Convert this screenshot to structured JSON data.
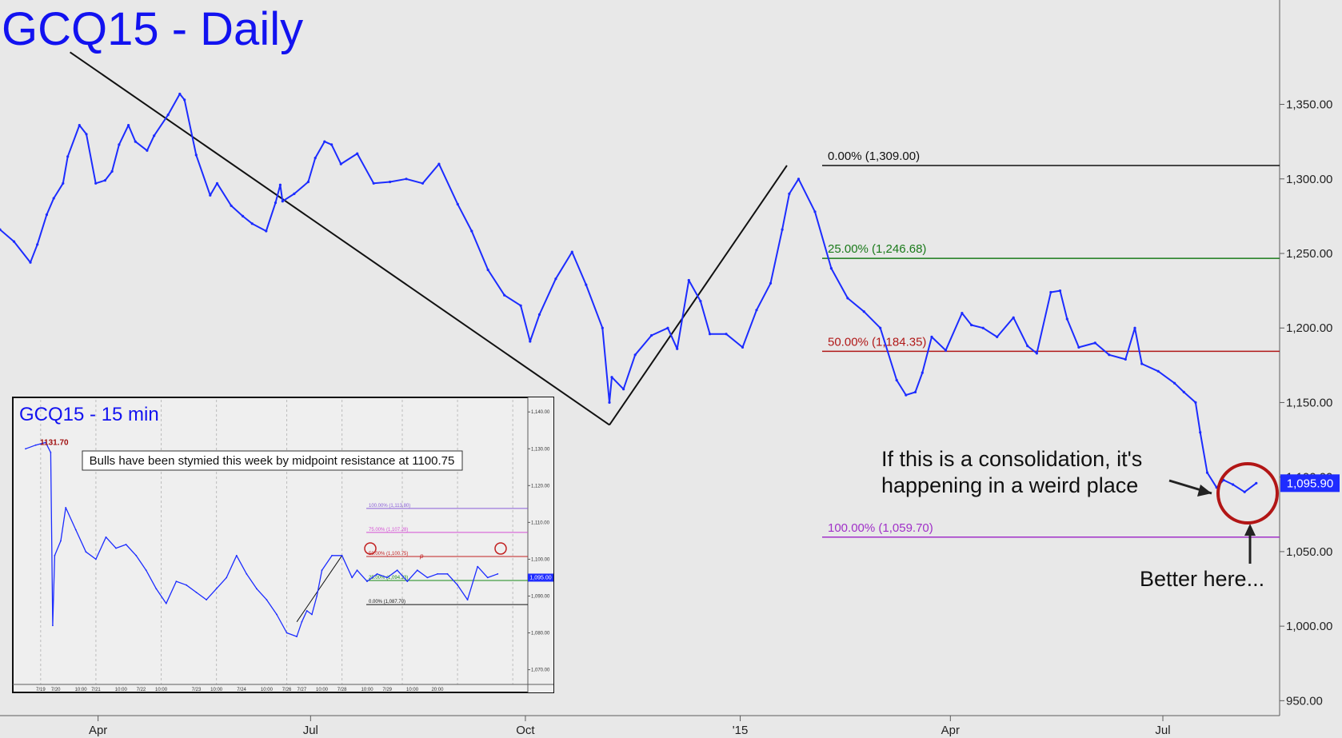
{
  "chart_data": [
    {
      "type": "line",
      "title": "GCQ15 - Daily",
      "x_tick_labels": [
        "Apr",
        "Jul",
        "Oct",
        "'15",
        "Apr",
        "Jul"
      ],
      "y_tick_labels": [
        "950.00",
        "1,000.00",
        "1,050.00",
        "1,100.00",
        "1,150.00",
        "1,200.00",
        "1,250.00",
        "1,300.00",
        "1,350.00"
      ],
      "ylim": [
        940,
        1420
      ],
      "x_range": [
        "2014-02-18",
        "2015-08-20"
      ],
      "grid": false,
      "series": [
        {
          "values": [
            [
              "2014-02-18",
              1266
            ],
            [
              "2014-02-24",
              1258
            ],
            [
              "2014-03-03",
              1244
            ],
            [
              "2014-03-06",
              1256
            ],
            [
              "2014-03-10",
              1276
            ],
            [
              "2014-03-13",
              1287
            ],
            [
              "2014-03-17",
              1297
            ],
            [
              "2014-03-19",
              1315
            ],
            [
              "2014-03-24",
              1336
            ],
            [
              "2014-03-27",
              1330
            ],
            [
              "2014-03-31",
              1297
            ],
            [
              "2014-04-04",
              1299
            ],
            [
              "2014-04-07",
              1305
            ],
            [
              "2014-04-10",
              1323
            ],
            [
              "2014-04-14",
              1336
            ],
            [
              "2014-04-17",
              1325
            ],
            [
              "2014-04-22",
              1319
            ],
            [
              "2014-04-25",
              1329
            ],
            [
              "2014-05-01",
              1343
            ],
            [
              "2014-05-06",
              1357
            ],
            [
              "2014-05-08",
              1353
            ],
            [
              "2014-05-13",
              1316
            ],
            [
              "2014-05-19",
              1289
            ],
            [
              "2014-05-22",
              1297
            ],
            [
              "2014-05-28",
              1282
            ],
            [
              "2014-06-02",
              1275
            ],
            [
              "2014-06-06",
              1270
            ],
            [
              "2014-06-12",
              1265
            ],
            [
              "2014-06-16",
              1284
            ],
            [
              "2014-06-18",
              1296
            ],
            [
              "2014-06-19",
              1285
            ],
            [
              "2014-06-24",
              1290
            ],
            [
              "2014-06-30",
              1298
            ],
            [
              "2014-07-03",
              1314
            ],
            [
              "2014-07-07",
              1325
            ],
            [
              "2014-07-10",
              1323
            ],
            [
              "2014-07-14",
              1310
            ],
            [
              "2014-07-21",
              1317
            ],
            [
              "2014-07-28",
              1297
            ],
            [
              "2014-08-04",
              1298
            ],
            [
              "2014-08-11",
              1300
            ],
            [
              "2014-08-18",
              1297
            ],
            [
              "2014-08-25",
              1310
            ],
            [
              "2014-09-02",
              1283
            ],
            [
              "2014-09-08",
              1265
            ],
            [
              "2014-09-15",
              1239
            ],
            [
              "2014-09-22",
              1222
            ],
            [
              "2014-09-29",
              1215
            ],
            [
              "2014-10-03",
              1191
            ],
            [
              "2014-10-07",
              1209
            ],
            [
              "2014-10-14",
              1233
            ],
            [
              "2014-10-21",
              1251
            ],
            [
              "2014-10-27",
              1229
            ],
            [
              "2014-11-03",
              1200
            ],
            [
              "2014-11-06",
              1150
            ],
            [
              "2014-11-07",
              1167
            ],
            [
              "2014-11-12",
              1159
            ],
            [
              "2014-11-17",
              1182
            ],
            [
              "2014-11-24",
              1195
            ],
            [
              "2014-12-01",
              1200
            ],
            [
              "2014-12-05",
              1186
            ],
            [
              "2014-12-10",
              1232
            ],
            [
              "2014-12-15",
              1218
            ],
            [
              "2014-12-19",
              1196
            ],
            [
              "2014-12-26",
              1196
            ],
            [
              "2015-01-02",
              1187
            ],
            [
              "2015-01-08",
              1212
            ],
            [
              "2015-01-14",
              1230
            ],
            [
              "2015-01-19",
              1266
            ],
            [
              "2015-01-22",
              1290
            ],
            [
              "2015-01-26",
              1300
            ],
            [
              "2015-02-02",
              1278
            ],
            [
              "2015-02-09",
              1240
            ],
            [
              "2015-02-16",
              1220
            ],
            [
              "2015-02-23",
              1211
            ],
            [
              "2015-03-02",
              1200
            ],
            [
              "2015-03-09",
              1165
            ],
            [
              "2015-03-13",
              1155
            ],
            [
              "2015-03-17",
              1157
            ],
            [
              "2015-03-20",
              1170
            ],
            [
              "2015-03-24",
              1194
            ],
            [
              "2015-03-30",
              1185
            ],
            [
              "2015-04-06",
              1210
            ],
            [
              "2015-04-10",
              1202
            ],
            [
              "2015-04-15",
              1200
            ],
            [
              "2015-04-21",
              1194
            ],
            [
              "2015-04-28",
              1207
            ],
            [
              "2015-05-04",
              1188
            ],
            [
              "2015-05-08",
              1183
            ],
            [
              "2015-05-14",
              1224
            ],
            [
              "2015-05-18",
              1225
            ],
            [
              "2015-05-21",
              1206
            ],
            [
              "2015-05-26",
              1187
            ],
            [
              "2015-06-02",
              1190
            ],
            [
              "2015-06-08",
              1182
            ],
            [
              "2015-06-15",
              1179
            ],
            [
              "2015-06-19",
              1200
            ],
            [
              "2015-06-22",
              1176
            ],
            [
              "2015-06-29",
              1171
            ],
            [
              "2015-07-06",
              1163
            ],
            [
              "2015-07-10",
              1157
            ],
            [
              "2015-07-15",
              1150
            ],
            [
              "2015-07-17",
              1130
            ],
            [
              "2015-07-20",
              1103
            ],
            [
              "2015-07-24",
              1093
            ],
            [
              "2015-07-27",
              1098
            ],
            [
              "2015-07-31",
              1095
            ],
            [
              "2015-08-05",
              1090
            ],
            [
              "2015-08-10",
              1095.9
            ]
          ]
        }
      ],
      "current_value_label": "1,095.90",
      "fib_levels": [
        {
          "label": "0.00% (1,309.00)",
          "value": 1309,
          "color": "#111111"
        },
        {
          "label": "25.00% (1,246.68)",
          "value": 1246.68,
          "color": "#1a7a1a"
        },
        {
          "label": "50.00% (1,184.35)",
          "value": 1184.35,
          "color": "#b01818"
        },
        {
          "label": "100.00% (1,059.70)",
          "value": 1059.7,
          "color": "#a030c8"
        }
      ],
      "trendlines": [
        {
          "from": [
            "2014-03-20",
            1385
          ],
          "to": [
            "2014-11-06",
            1135
          ]
        },
        {
          "from": [
            "2014-11-06",
            1135
          ],
          "to": [
            "2015-01-21",
            1309
          ]
        }
      ],
      "annotations": [
        {
          "text_lines": [
            "If this is a consolidation, it's",
            "happening in a weird place"
          ]
        },
        {
          "text": "Better here..."
        }
      ]
    },
    {
      "type": "line",
      "title": "GCQ15 - 15 min",
      "x_tick_labels": [
        "7/19",
        "7/20",
        "10:00",
        "7/21",
        "10:00",
        "7/22",
        "10:00",
        "7/23",
        "10:00",
        "7/24",
        "10:00",
        "7/26",
        "7/27",
        "10:00",
        "7/28",
        "10:00",
        "7/29",
        "10:00",
        "20:00"
      ],
      "y_tick_labels": [
        "1,070.00",
        "1,080.00",
        "1,090.00",
        "1,100.00",
        "1,110.00",
        "1,120.00",
        "1,130.00",
        "1,140.00"
      ],
      "ylim": [
        1066,
        1142
      ],
      "x_range": [
        0,
        100
      ],
      "grid": true,
      "series": [
        {
          "values": [
            [
              0,
              1130
            ],
            [
              2,
              1131
            ],
            [
              4,
              1131.7
            ],
            [
              5,
              1129
            ],
            [
              5.4,
              1082
            ],
            [
              5.8,
              1101
            ],
            [
              7,
              1105
            ],
            [
              8,
              1114
            ],
            [
              10,
              1108
            ],
            [
              12,
              1102
            ],
            [
              14,
              1100
            ],
            [
              16,
              1106
            ],
            [
              18,
              1103
            ],
            [
              20,
              1104
            ],
            [
              22,
              1101
            ],
            [
              24,
              1097
            ],
            [
              26,
              1092
            ],
            [
              28,
              1088
            ],
            [
              30,
              1094
            ],
            [
              32,
              1093
            ],
            [
              34,
              1091
            ],
            [
              36,
              1089
            ],
            [
              38,
              1092
            ],
            [
              40,
              1095
            ],
            [
              42,
              1101
            ],
            [
              44,
              1096
            ],
            [
              46,
              1092
            ],
            [
              48,
              1089
            ],
            [
              50,
              1085
            ],
            [
              52,
              1080
            ],
            [
              54,
              1079
            ],
            [
              55,
              1083
            ],
            [
              56,
              1086
            ],
            [
              57,
              1085
            ],
            [
              58,
              1090
            ],
            [
              59,
              1097
            ],
            [
              61,
              1101
            ],
            [
              63,
              1101
            ],
            [
              65,
              1095
            ],
            [
              66,
              1097
            ],
            [
              68,
              1094
            ],
            [
              70,
              1096
            ],
            [
              72,
              1095
            ],
            [
              74,
              1097
            ],
            [
              76,
              1094
            ],
            [
              78,
              1097
            ],
            [
              80,
              1095
            ],
            [
              82,
              1096
            ],
            [
              84,
              1096
            ],
            [
              86,
              1093
            ],
            [
              88,
              1089
            ],
            [
              90,
              1098
            ],
            [
              92,
              1095
            ],
            [
              94,
              1096
            ]
          ]
        }
      ],
      "high_label": "1131.70",
      "current_value_label": "1,095.00",
      "fib_levels": [
        {
          "label": "100.00% (1,113.80)",
          "value": 1113.8,
          "color": "#8a5ed8"
        },
        {
          "label": "75.00% (1,107.28)",
          "value": 1107.28,
          "color": "#d44fd4"
        },
        {
          "label": "50.00% (1,100.75)",
          "value": 1100.75,
          "color": "#c22020"
        },
        {
          "label": "25.00% (1,094.23)",
          "value": 1094.23,
          "color": "#1a8a1a"
        },
        {
          "label": "0.00% (1,087.70)",
          "value": 1087.7,
          "color": "#111111"
        }
      ],
      "fib_marker": "p",
      "trendlines": [
        {
          "from": [
            54,
            1083
          ],
          "to": [
            63,
            1101
          ]
        }
      ],
      "annotation": "Bulls have been stymied this week by midpoint resistance at 1100.75"
    }
  ]
}
